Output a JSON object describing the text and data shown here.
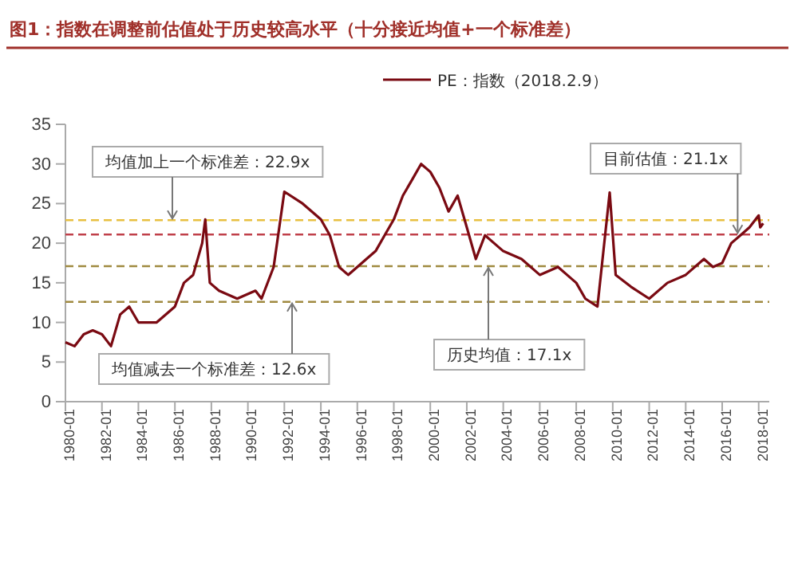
{
  "chart_data": {
    "type": "line",
    "title": "图1：指数在调整前估值处于历史较高水平（十分接近均值+一个标准差）",
    "x": [
      "1980-01",
      "1980-07",
      "1981-01",
      "1981-07",
      "1982-01",
      "1982-07",
      "1983-01",
      "1983-07",
      "1984-01",
      "1985-01",
      "1986-01",
      "1986-07",
      "1987-01",
      "1987-07",
      "1987-09",
      "1987-12",
      "1988-06",
      "1989-06",
      "1990-06",
      "1990-10",
      "1991-06",
      "1992-01",
      "1993-01",
      "1994-01",
      "1994-07",
      "1995-01",
      "1995-07",
      "1996-01",
      "1996-07",
      "1997-01",
      "1997-07",
      "1998-01",
      "1998-07",
      "1999-01",
      "1999-07",
      "2000-01",
      "2000-07",
      "2001-01",
      "2001-07",
      "2002-01",
      "2002-07",
      "2003-01",
      "2003-07",
      "2004-01",
      "2005-01",
      "2006-01",
      "2007-01",
      "2007-07",
      "2008-01",
      "2008-07",
      "2009-03",
      "2009-11",
      "2010-03",
      "2011-01",
      "2012-01",
      "2013-01",
      "2014-01",
      "2015-01",
      "2015-07",
      "2016-01",
      "2016-07",
      "2017-01",
      "2017-07",
      "2018-01",
      "2018-02",
      "2018-04"
    ],
    "series": [
      {
        "name": "PE：指数（2018.2.9）",
        "color": "#7a0a12",
        "values": [
          7.5,
          7,
          8.5,
          9,
          8.5,
          7,
          11,
          12,
          10,
          10,
          12,
          15,
          16,
          20,
          23,
          15,
          14,
          13,
          14,
          13,
          17,
          26.5,
          25,
          23,
          21,
          17,
          16,
          17,
          18,
          19,
          21,
          23,
          26,
          28,
          30,
          29,
          27,
          24,
          26,
          22,
          18,
          21,
          20,
          19,
          18,
          16,
          17,
          16,
          15,
          13,
          12,
          26.4,
          16,
          14.5,
          13,
          15,
          16,
          18,
          17,
          17.5,
          20,
          21,
          22,
          23.5,
          22,
          22.5
        ]
      }
    ],
    "xlim": [
      "1980-01",
      "2018-08"
    ],
    "xticks": [
      "1980-01",
      "1982-01",
      "1984-01",
      "1986-01",
      "1988-01",
      "1990-01",
      "1992-01",
      "1994-01",
      "1996-01",
      "1998-01",
      "2000-01",
      "2002-01",
      "2004-01",
      "2006-01",
      "2008-01",
      "2010-01",
      "2012-01",
      "2014-01",
      "2016-01",
      "2018-01"
    ],
    "ylim": [
      0,
      35
    ],
    "yticks": [
      0,
      5,
      10,
      15,
      20,
      25,
      30,
      35
    ],
    "ref_lines": [
      {
        "axis": "y",
        "value": 22.9,
        "label": "均值加上一个标准差：22.9x",
        "color": "#e8c040",
        "line_style": "dashed"
      },
      {
        "axis": "y",
        "value": 21.1,
        "label": "目前估值：21.1x",
        "color": "#c0404a",
        "line_style": "dashed"
      },
      {
        "axis": "y",
        "value": 17.1,
        "label": "历史均值：17.1x",
        "color": "#a08a40",
        "line_style": "dashed"
      },
      {
        "axis": "y",
        "value": 12.6,
        "label": "均值减去一个标准差：12.6x",
        "color": "#a08a40",
        "line_style": "dashed"
      }
    ],
    "legend": "top right",
    "grid": false
  }
}
